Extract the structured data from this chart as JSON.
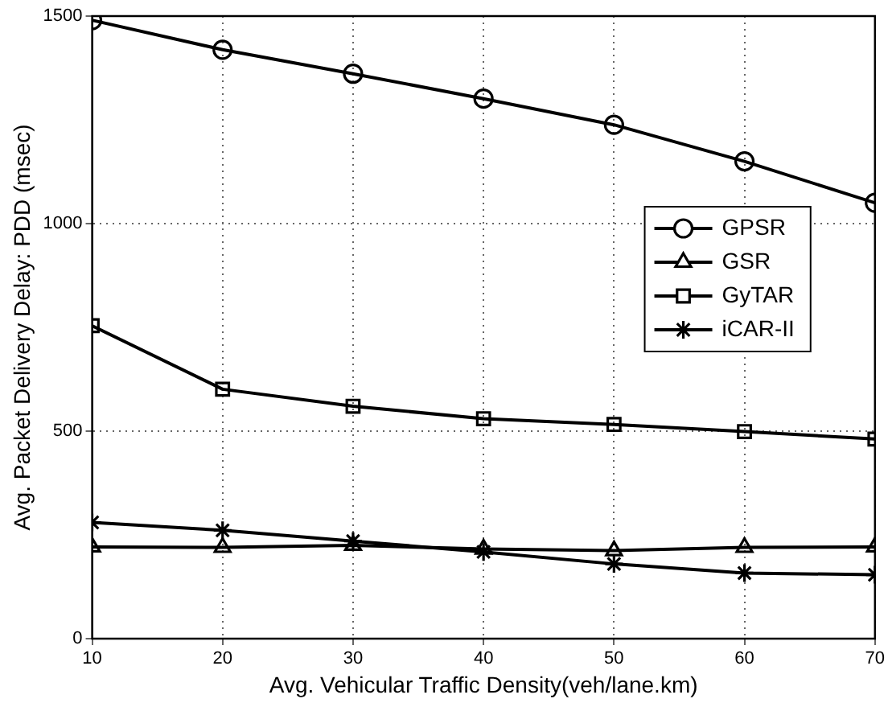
{
  "chart_data": {
    "type": "line",
    "xlabel": "Avg. Vehicular Traffic Density(veh/lane.km)",
    "ylabel": "Avg. Packet Delivery Delay: PDD (msec)",
    "x": [
      10,
      20,
      30,
      40,
      50,
      60,
      70
    ],
    "series": [
      {
        "name": "GPSR",
        "color": "#000000",
        "marker": "circle",
        "values": [
          1490,
          1419,
          1361,
          1301,
          1238,
          1150,
          1050
        ]
      },
      {
        "name": "GSR",
        "color": "#000000",
        "marker": "triangle",
        "values": [
          221,
          220,
          225,
          216,
          212,
          220,
          221
        ]
      },
      {
        "name": "GyTAR",
        "color": "#000000",
        "marker": "square",
        "values": [
          754,
          601,
          560,
          530,
          516,
          499,
          481
        ]
      },
      {
        "name": "iCAR-II",
        "color": "#000000",
        "marker": "cross",
        "values": [
          280,
          261,
          235,
          209,
          180,
          158,
          154
        ]
      }
    ],
    "xlim": [
      10,
      70
    ],
    "xticks": [
      10,
      20,
      30,
      40,
      50,
      60,
      70
    ],
    "ylim": [
      0,
      1500
    ],
    "yticks": [
      0,
      500,
      1000,
      1500
    ],
    "grid": true,
    "legend": "right",
    "line_style": "solid"
  }
}
